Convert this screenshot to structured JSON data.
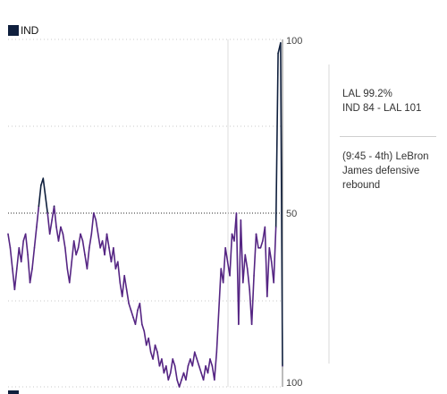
{
  "legend": {
    "label": "IND",
    "color": "#0f1f3d"
  },
  "second_team_color": "#552583",
  "ticks": {
    "top": "100",
    "middle": "50",
    "bottom": "100"
  },
  "info": {
    "probability": "LAL 99.2%",
    "score": "IND 84 - LAL 101",
    "play": "(9:45 - 4th) LeBron James defensive rebound"
  },
  "chart_data": {
    "type": "line",
    "title": "",
    "xlabel": "",
    "ylabel": "",
    "x_domain": "game progress (fraction 0-1, hovered point near 0.993)",
    "ylim": [
      0,
      100
    ],
    "y_ticks": [
      "100",
      "50",
      "100"
    ],
    "grid": true,
    "legend": "top-left",
    "series": [
      {
        "name": "IND",
        "colors": {
          "ind_favored": "#0f1f3d",
          "lal_favored": "#552583"
        },
        "x": [
          0.0,
          0.008,
          0.016,
          0.024,
          0.032,
          0.04,
          0.048,
          0.056,
          0.064,
          0.072,
          0.08,
          0.088,
          0.096,
          0.104,
          0.112,
          0.12,
          0.128,
          0.136,
          0.144,
          0.152,
          0.16,
          0.168,
          0.176,
          0.184,
          0.192,
          0.2,
          0.208,
          0.216,
          0.224,
          0.232,
          0.24,
          0.248,
          0.256,
          0.264,
          0.272,
          0.28,
          0.288,
          0.296,
          0.304,
          0.312,
          0.32,
          0.328,
          0.336,
          0.344,
          0.352,
          0.36,
          0.368,
          0.376,
          0.384,
          0.392,
          0.4,
          0.408,
          0.416,
          0.424,
          0.432,
          0.44,
          0.448,
          0.456,
          0.464,
          0.472,
          0.48,
          0.488,
          0.496,
          0.504,
          0.512,
          0.52,
          0.528,
          0.536,
          0.544,
          0.552,
          0.56,
          0.568,
          0.576,
          0.584,
          0.592,
          0.6,
          0.608,
          0.616,
          0.624,
          0.632,
          0.64,
          0.648,
          0.656,
          0.664,
          0.672,
          0.68,
          0.688,
          0.696,
          0.704,
          0.712,
          0.72,
          0.728,
          0.736,
          0.744,
          0.752,
          0.76,
          0.768,
          0.776,
          0.784,
          0.792,
          0.8,
          0.808,
          0.816,
          0.824,
          0.832,
          0.84,
          0.848,
          0.856,
          0.864,
          0.872,
          0.88,
          0.888,
          0.896,
          0.904,
          0.912,
          0.92,
          0.928,
          0.936,
          0.944,
          0.952,
          0.96,
          0.968,
          0.976,
          0.984,
          0.993,
          1.0
        ],
        "y": [
          44,
          40,
          34,
          28,
          34,
          40,
          36,
          42,
          44,
          38,
          30,
          34,
          40,
          46,
          52,
          58,
          60,
          55,
          50,
          44,
          48,
          52,
          46,
          42,
          46,
          44,
          40,
          34,
          30,
          36,
          42,
          38,
          40,
          44,
          42,
          38,
          34,
          40,
          44,
          50,
          48,
          44,
          40,
          42,
          38,
          44,
          40,
          36,
          40,
          34,
          36,
          30,
          26,
          32,
          28,
          24,
          22,
          20,
          18,
          22,
          24,
          18,
          16,
          12,
          14,
          10,
          8,
          12,
          10,
          6,
          8,
          4,
          6,
          2,
          4,
          8,
          6,
          2,
          0,
          2,
          4,
          2,
          6,
          8,
          6,
          10,
          8,
          6,
          4,
          2,
          6,
          4,
          8,
          6,
          2,
          10,
          22,
          34,
          30,
          40,
          36,
          32,
          44,
          42,
          50,
          18,
          48,
          30,
          38,
          34,
          28,
          18,
          32,
          44,
          40,
          40,
          42,
          46,
          26,
          40,
          36,
          30,
          46,
          96,
          99,
          6
        ]
      }
    ]
  }
}
